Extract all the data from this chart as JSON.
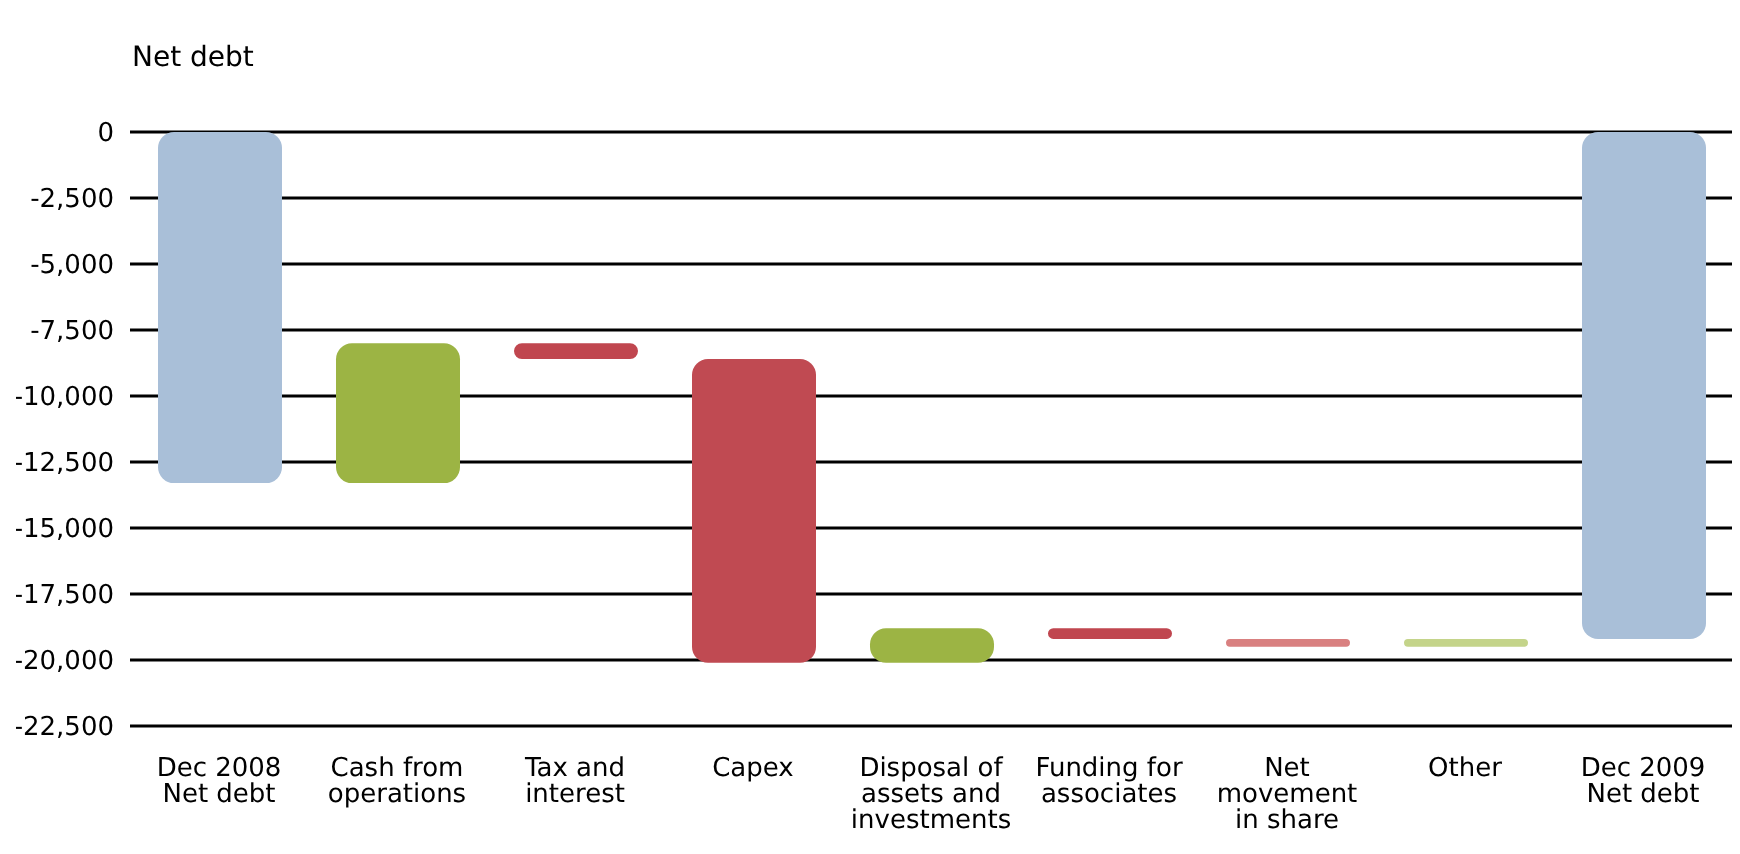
{
  "chart_data": {
    "type": "bar",
    "ylabel": "Net debt",
    "categories": [
      "Dec 2008 Net debt",
      "Cash from operations",
      "Tax and interest",
      "Capex",
      "Disposal of assets and investments",
      "Funding for associates",
      "Net movement in share",
      "Other",
      "Dec 2009 Net debt"
    ],
    "base": [
      0,
      -13300,
      -8000,
      -8600,
      -20100,
      -18800,
      -19200,
      -19500,
      0
    ],
    "values": [
      -13300,
      5300,
      -600,
      -11500,
      1300,
      -400,
      -300,
      300,
      -19200
    ],
    "colors": [
      "#a9bfd8",
      "#9cb444",
      "#c0464f",
      "#c04a52",
      "#9cb444",
      "#c0464f",
      "#d98080",
      "#c4d48a",
      "#a9bfd8"
    ],
    "ylim": [
      -22500,
      0
    ],
    "yticks": [
      0,
      {
        "value": -2500,
        "label": "-2,500"
      },
      {
        "value": -5000,
        "label": "-5,000"
      },
      {
        "value": -7500,
        "label": "-7,500"
      },
      {
        "value": -10000,
        "label": "-10,000"
      },
      {
        "value": -12500,
        "label": "-12,500"
      },
      {
        "value": -15000,
        "label": "-15,000"
      },
      {
        "value": -17500,
        "label": "-17,500"
      },
      {
        "value": -20000,
        "label": "-20,000"
      },
      {
        "value": -22500,
        "label": "-22,500"
      }
    ],
    "grid": "y"
  }
}
